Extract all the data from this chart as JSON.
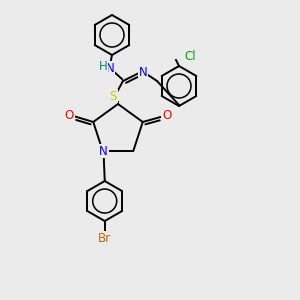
{
  "background_color": "#ebebeb",
  "bond_color": "#000000",
  "bond_width": 1.4,
  "atom_colors": {
    "N": "#0000ff",
    "O": "#ff0000",
    "S": "#cccc00",
    "Br": "#cc6600",
    "Cl": "#00aa00",
    "H": "#008888",
    "C": "#000000"
  },
  "font_size": 8.5
}
